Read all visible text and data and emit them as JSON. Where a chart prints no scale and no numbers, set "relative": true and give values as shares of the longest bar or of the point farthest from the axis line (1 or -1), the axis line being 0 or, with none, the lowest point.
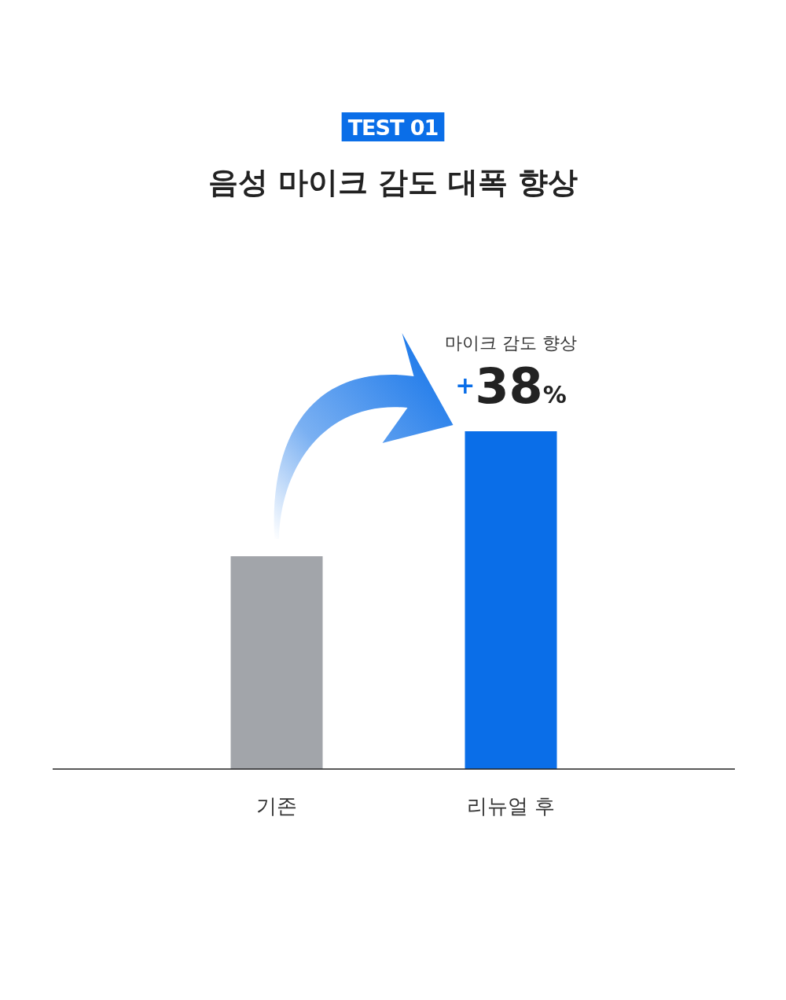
{
  "chart_data": {
    "type": "bar",
    "title": "음성 마이크 감도 대폭 향상",
    "categories": [
      "기존",
      "리뉴얼 후"
    ],
    "values": [
      0.63,
      1
    ],
    "colors": [
      "#a2a5aa",
      "#0a6ee8"
    ],
    "relative": true,
    "annotations": [
      "TEST 01",
      "마이크 감도 향상",
      "+38%"
    ]
  }
}
